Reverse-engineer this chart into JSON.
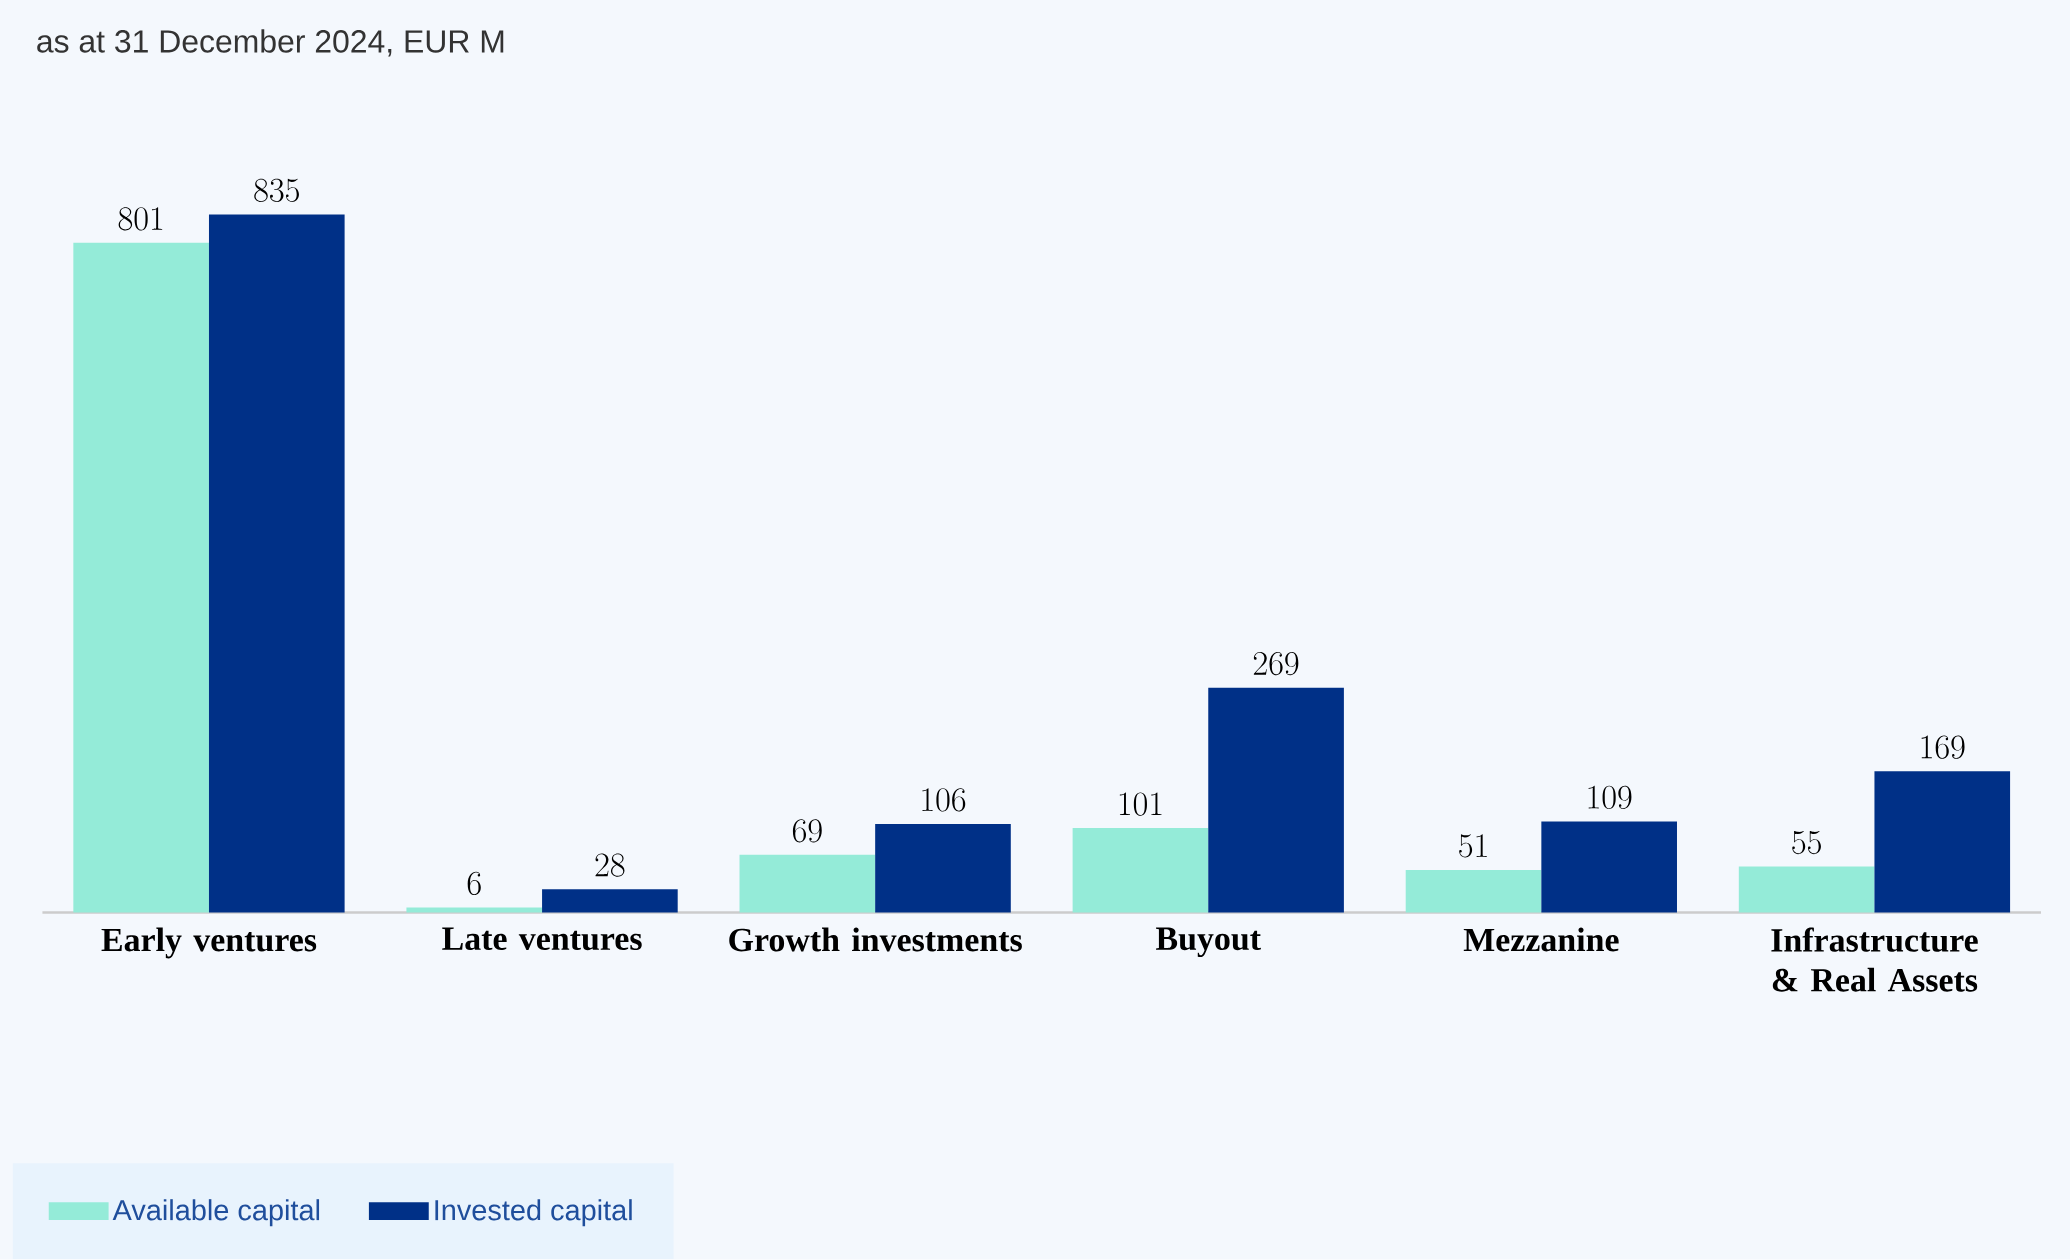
{
  "chart_data": {
    "type": "bar",
    "subtitle": "as at 31 December 2024, EUR M",
    "categories": [
      "Early ventures",
      "Late ventures",
      "Growth investments",
      "Buyout",
      "Mezzanine",
      "Infrastructure & Real Assets"
    ],
    "series": [
      {
        "name": "Available capital",
        "color": "#94ebd8",
        "values": [
          801,
          6,
          69,
          101,
          51,
          55
        ]
      },
      {
        "name": "Invested capital",
        "color": "#003087",
        "values": [
          835,
          28,
          106,
          269,
          109,
          169
        ]
      }
    ],
    "data_labels": true,
    "legend": "bottom left"
  }
}
